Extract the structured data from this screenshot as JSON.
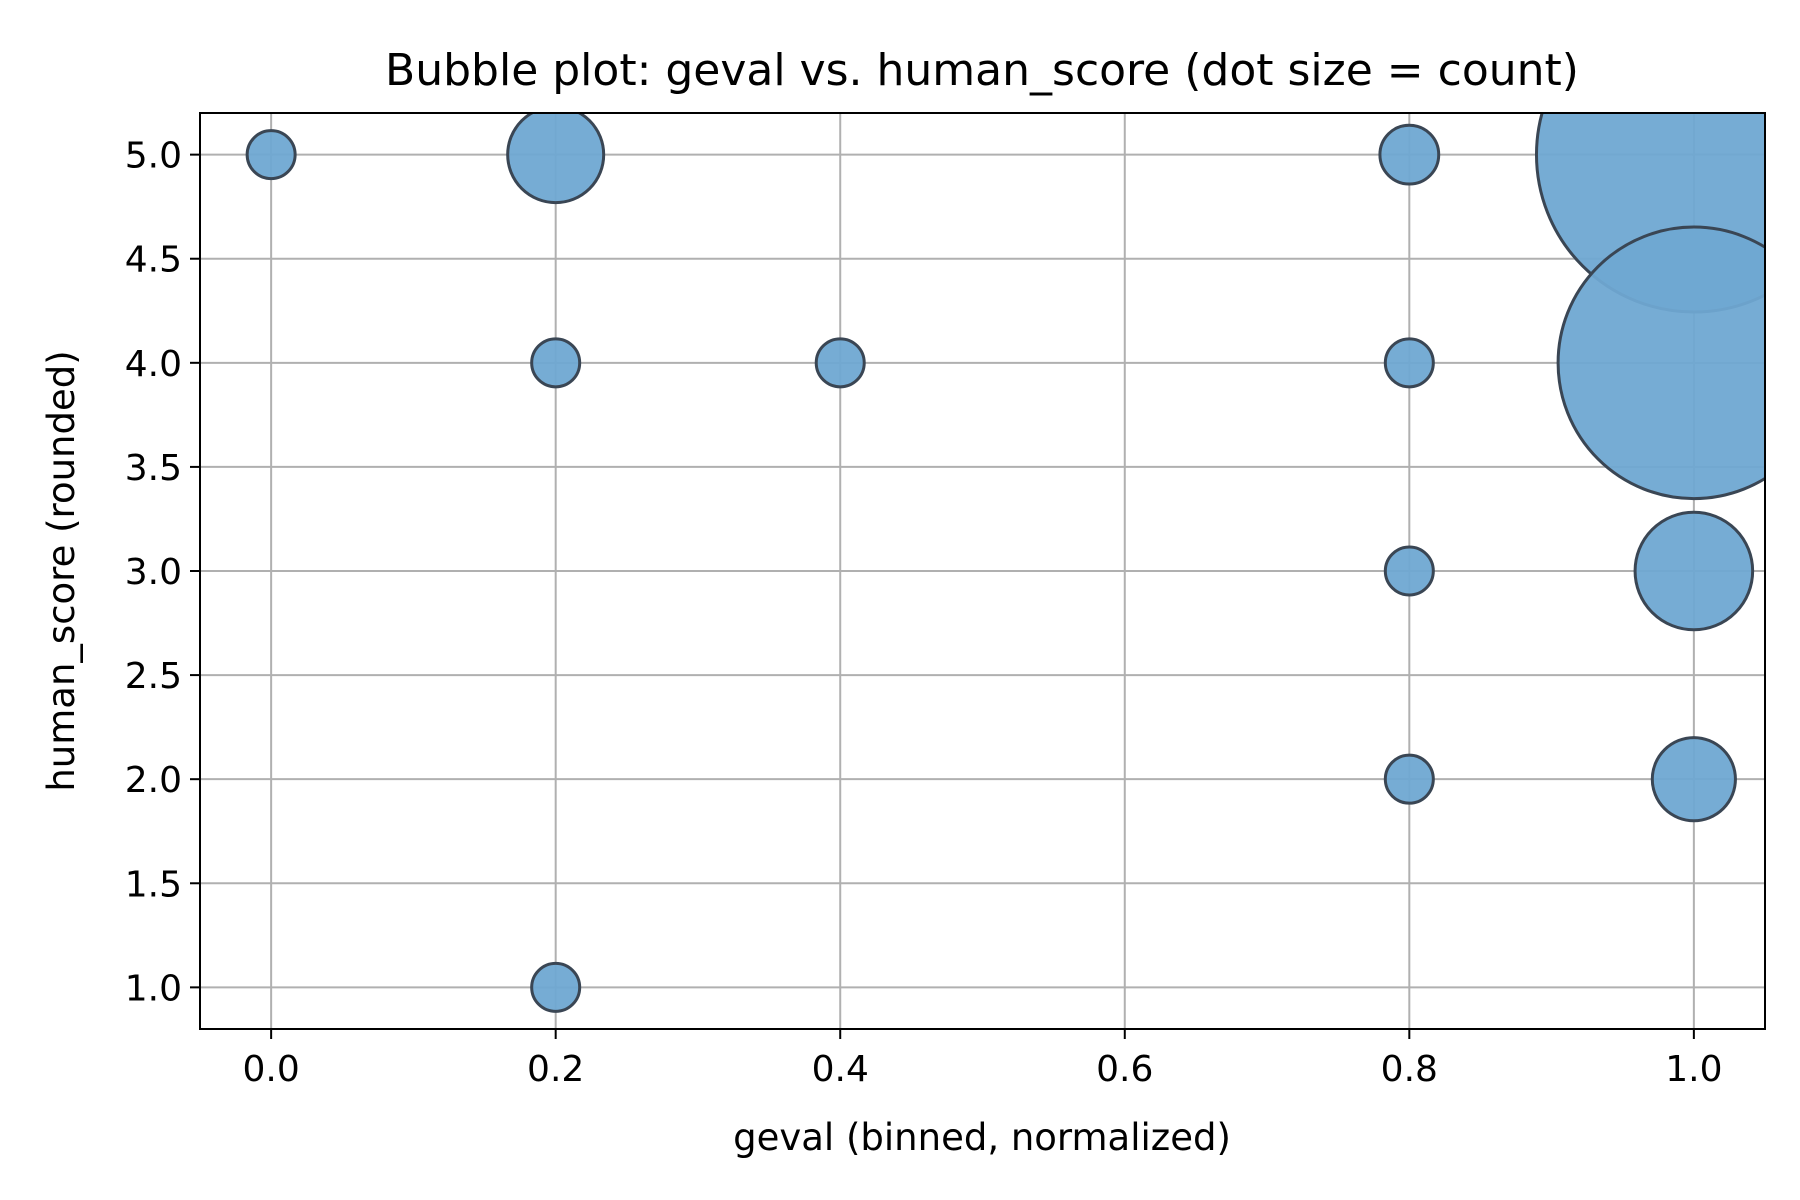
{
  "chart_data": {
    "type": "scatter",
    "title": "Bubble plot: geval vs. human_score (dot size = count)",
    "xlabel": "geval (binned, normalized)",
    "ylabel": "human_score (rounded)",
    "xlim": [
      -0.05,
      1.05
    ],
    "ylim": [
      0.8,
      5.2
    ],
    "xticks": [
      "0.0",
      "0.2",
      "0.4",
      "0.6",
      "0.8",
      "1.0"
    ],
    "yticks": [
      "1.0",
      "1.5",
      "2.0",
      "2.5",
      "3.0",
      "3.5",
      "4.0",
      "4.5",
      "5.0"
    ],
    "grid": true,
    "point_color": "#6fa8d2",
    "point_edge_color": "#3a4654",
    "series": [
      {
        "points": [
          {
            "x": 0.0,
            "y": 5.0,
            "count": 1
          },
          {
            "x": 0.2,
            "y": 5.0,
            "count": 4
          },
          {
            "x": 0.2,
            "y": 4.0,
            "count": 1
          },
          {
            "x": 0.2,
            "y": 1.0,
            "count": 1
          },
          {
            "x": 0.4,
            "y": 4.0,
            "count": 1
          },
          {
            "x": 0.8,
            "y": 5.0,
            "count": 1.5
          },
          {
            "x": 0.8,
            "y": 4.0,
            "count": 1
          },
          {
            "x": 0.8,
            "y": 3.0,
            "count": 1
          },
          {
            "x": 0.8,
            "y": 2.0,
            "count": 1
          },
          {
            "x": 1.0,
            "y": 5.0,
            "count": 43
          },
          {
            "x": 1.0,
            "y": 4.0,
            "count": 32
          },
          {
            "x": 1.0,
            "y": 3.0,
            "count": 6
          },
          {
            "x": 1.0,
            "y": 2.0,
            "count": 3
          }
        ]
      }
    ]
  }
}
